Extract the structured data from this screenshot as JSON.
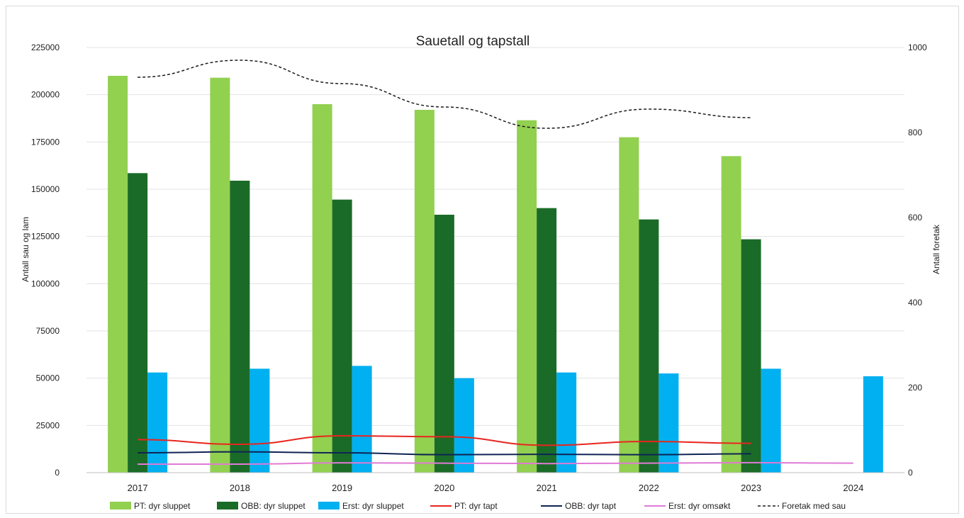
{
  "chart_data": {
    "type": "bar",
    "title": "Sauetall og tapstall",
    "ylabel": "Antall sau og lam",
    "y2label": "Antall foretak",
    "categories": [
      "2017",
      "2018",
      "2019",
      "2020",
      "2021",
      "2022",
      "2023",
      "2024"
    ],
    "ylim": [
      0,
      225000
    ],
    "yticks": [
      "0",
      "25000",
      "50000",
      "75000",
      "100000",
      "125000",
      "150000",
      "175000",
      "200000",
      "225000"
    ],
    "y2lim": [
      0,
      1000
    ],
    "y2ticks": [
      "0",
      "200",
      "400",
      "600",
      "800",
      "1000"
    ],
    "grid": true,
    "legend_position": "bottom",
    "bar_series": [
      {
        "name": "PT: dyr sluppet",
        "color": "#92d050",
        "values": [
          210000,
          209000,
          195000,
          192000,
          186500,
          177500,
          167500,
          null
        ]
      },
      {
        "name": "OBB: dyr sluppet",
        "color": "#1b6b28",
        "values": [
          158500,
          154500,
          144500,
          136500,
          140000,
          134000,
          123500,
          null
        ]
      },
      {
        "name": "Erst: dyr sluppet",
        "color": "#00b0f0",
        "values": [
          53000,
          55000,
          56500,
          50000,
          53000,
          52500,
          55000,
          51000
        ]
      }
    ],
    "line_series": [
      {
        "name": "PT: dyr tapt",
        "color": "#e8251f",
        "dash": false,
        "axis": "left",
        "values": [
          17500,
          15000,
          19500,
          19000,
          14500,
          16500,
          15500,
          null
        ]
      },
      {
        "name": "OBB: dyr tapt",
        "color": "#0f2454",
        "dash": false,
        "axis": "left",
        "values": [
          10500,
          11000,
          10500,
          9500,
          9700,
          9500,
          10000,
          null
        ]
      },
      {
        "name": "Erst: dyr omsøkt",
        "color": "#e07ad6",
        "dash": false,
        "axis": "left",
        "values": [
          4500,
          4500,
          5200,
          5000,
          4800,
          5000,
          5300,
          5000
        ]
      },
      {
        "name": "Foretak med sau",
        "color": "#1a1a1a",
        "dash": true,
        "axis": "right",
        "values": [
          930,
          970,
          915,
          860,
          810,
          855,
          835,
          null
        ]
      }
    ]
  }
}
